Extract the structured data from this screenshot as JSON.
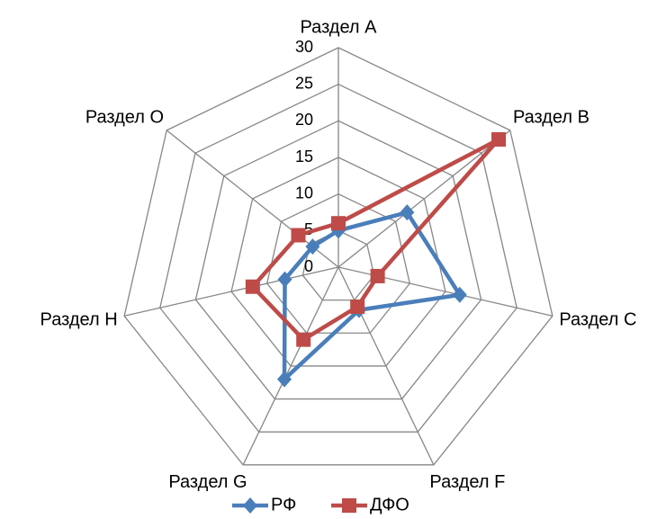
{
  "chart_data": {
    "type": "radar",
    "categories": [
      "Раздел А",
      "Раздел B",
      "Раздел C",
      "Раздел F",
      "Раздел G",
      "Раздел H",
      "Раздел O"
    ],
    "series": [
      {
        "name": "РФ",
        "color": "#4a7ebb",
        "marker": "diamond",
        "values": [
          5,
          12,
          17,
          6.5,
          17,
          7.5,
          4.5
        ]
      },
      {
        "name": "ДФО",
        "color": "#be4b48",
        "marker": "square",
        "values": [
          6,
          28,
          5.5,
          6,
          11,
          12,
          7
        ]
      }
    ],
    "ylim": [
      0,
      30
    ],
    "yticks": [
      0,
      5,
      10,
      15,
      20,
      25,
      30
    ],
    "grid": true,
    "legend": "bottom"
  }
}
